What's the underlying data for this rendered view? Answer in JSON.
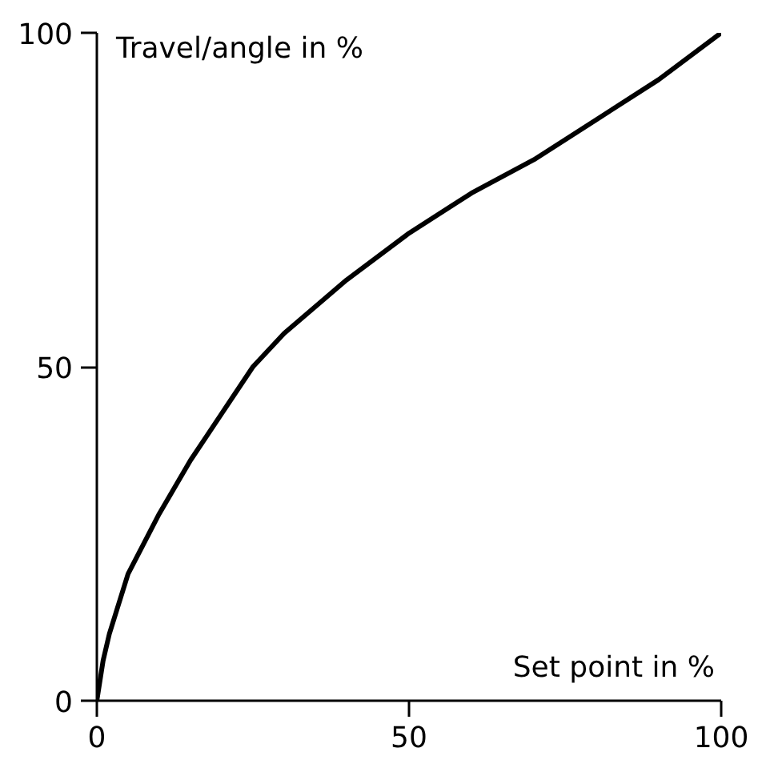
{
  "chart_data": {
    "type": "line",
    "xlabel": "Set point in %",
    "ylabel": "Travel/angle in %",
    "x": [
      0,
      1,
      2,
      5,
      10,
      15,
      20,
      25,
      30,
      40,
      50,
      60,
      70,
      80,
      90,
      100
    ],
    "series": [
      {
        "color": "#000000",
        "values": [
          0,
          6,
          10,
          19,
          28,
          36,
          43,
          50,
          55,
          63,
          70,
          76,
          81,
          87,
          93,
          100
        ]
      }
    ],
    "xlim": [
      0,
      100
    ],
    "ylim": [
      0,
      100
    ],
    "xticks": [
      0,
      50,
      100
    ],
    "yticks": [
      0,
      50,
      100
    ],
    "line_style": "solid"
  }
}
